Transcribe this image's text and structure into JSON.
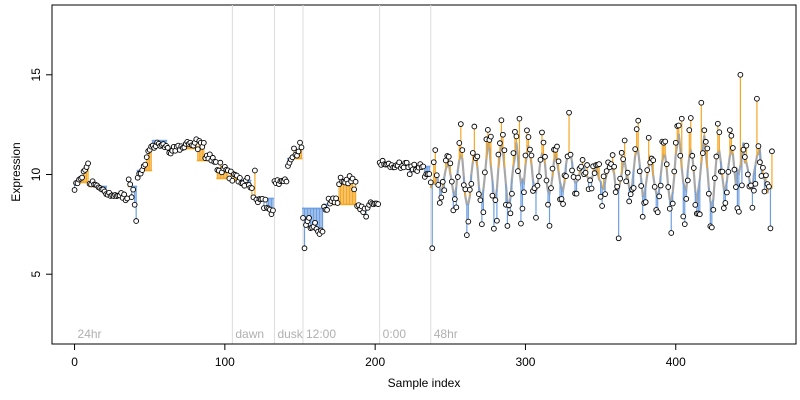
{
  "chart_data": {
    "type": "scatter",
    "title": "",
    "xlabel": "Sample index",
    "ylabel": "Expression",
    "xlim": [
      -15,
      480
    ],
    "ylim": [
      1.5,
      18.5
    ],
    "xticks": [
      0,
      100,
      200,
      300,
      400
    ],
    "yticks": [
      5,
      10,
      15
    ],
    "grid": false,
    "legend": "none",
    "baseline": 10.3,
    "colors": {
      "points_fill": "#ffffff",
      "points_stroke": "#000000",
      "above_segment": "#f5a623",
      "below_segment": "#6f9fe0",
      "smooth_line": "#a8a8a8",
      "phase_lines": "#dcdcdc",
      "annotation_text": "#b0b0b0"
    },
    "phase_annotations": [
      {
        "x": 0,
        "label": "24hr"
      },
      {
        "x": 105,
        "label": "dawn"
      },
      {
        "x": 133,
        "label": "dusk"
      },
      {
        "x": 152,
        "label": "12:00"
      },
      {
        "x": 203,
        "label": "0:00"
      },
      {
        "x": 237,
        "label": "48hr"
      }
    ],
    "phase_lines_x": [
      105,
      133,
      152,
      203,
      237
    ],
    "segments": [
      {
        "range": [
          0,
          10
        ],
        "start": 9.2,
        "end": 10.5,
        "noise": 0.35,
        "step_level": 9.6
      },
      {
        "range": [
          10,
          22
        ],
        "start": 9.6,
        "end": 9.2,
        "noise": 0.25,
        "step_level": 9.4
      },
      {
        "range": [
          22,
          36
        ],
        "start": 9.0,
        "end": 8.8,
        "noise": 0.35,
        "step_level": 8.9
      },
      {
        "range": [
          36,
          42
        ],
        "start": 9.8,
        "end": 8.0,
        "noise": 0.6,
        "step_level": 9.4
      },
      {
        "range": [
          42,
          52
        ],
        "start": 9.7,
        "end": 11.4,
        "noise": 0.35,
        "step_level": 10.2
      },
      {
        "range": [
          52,
          62
        ],
        "start": 11.6,
        "end": 11.4,
        "noise": 0.35,
        "step_level": 11.7
      },
      {
        "range": [
          62,
          82
        ],
        "start": 11.2,
        "end": 11.5,
        "noise": 0.4,
        "step_level": 11.3
      },
      {
        "range": [
          82,
          95
        ],
        "start": 11.6,
        "end": 10.6,
        "noise": 0.45,
        "step_level": 10.7
      },
      {
        "range": [
          95,
          105
        ],
        "start": 10.3,
        "end": 10.1,
        "noise": 0.4,
        "step_level": 9.8
      },
      {
        "range": [
          105,
          118
        ],
        "start": 9.8,
        "end": 9.5,
        "noise": 0.35,
        "step_level": 9.7
      },
      {
        "range": [
          118,
          133
        ],
        "start": 9.2,
        "end": 8.2,
        "noise": 0.35,
        "step_level": 8.8
      },
      {
        "range": [
          133,
          142
        ],
        "start": 9.6,
        "end": 9.7,
        "noise": 0.2,
        "step_level": 9.7
      },
      {
        "range": [
          142,
          152
        ],
        "start": 10.4,
        "end": 11.5,
        "noise": 0.4,
        "step_level": 10.8
      },
      {
        "range": [
          152,
          166
        ],
        "start": 7.6,
        "end": 7.2,
        "noise": 0.5,
        "step_level": 8.3
      },
      {
        "range": [
          166,
          176
        ],
        "start": 8.4,
        "end": 8.8,
        "noise": 0.35,
        "step_level": 8.5
      },
      {
        "range": [
          176,
          188
        ],
        "start": 9.6,
        "end": 9.6,
        "noise": 0.45,
        "step_level": 8.5
      },
      {
        "range": [
          188,
          196
        ],
        "start": 8.5,
        "end": 8.0,
        "noise": 0.35,
        "step_level": 8.3
      },
      {
        "range": [
          196,
          203
        ],
        "start": 8.5,
        "end": 8.5,
        "noise": 0.15,
        "step_level": 8.5
      },
      {
        "range": [
          203,
          220
        ],
        "start": 10.5,
        "end": 10.4,
        "noise": 0.25,
        "step_level": 10.5
      },
      {
        "range": [
          220,
          237
        ],
        "start": 10.4,
        "end": 10.1,
        "noise": 0.35,
        "step_level": 10.4
      },
      {
        "range": [
          237,
          465
        ],
        "start": 10.0,
        "end": 10.0,
        "noise": 1.2,
        "step_level": 10.0,
        "oscillate": true,
        "period": 9
      }
    ],
    "highlights": [
      {
        "x": 120,
        "y": 10.2
      },
      {
        "x": 150,
        "y": 11.6
      },
      {
        "x": 153,
        "y": 6.3
      },
      {
        "x": 238,
        "y": 6.3
      },
      {
        "x": 277,
        "y": 11.9
      },
      {
        "x": 296,
        "y": 12.8
      },
      {
        "x": 329,
        "y": 13.1
      },
      {
        "x": 362,
        "y": 6.8
      },
      {
        "x": 375,
        "y": 12.7
      },
      {
        "x": 404,
        "y": 12.8
      },
      {
        "x": 417,
        "y": 13.6
      },
      {
        "x": 443,
        "y": 15.0
      },
      {
        "x": 454,
        "y": 13.8
      },
      {
        "x": 463,
        "y": 7.3
      }
    ]
  }
}
